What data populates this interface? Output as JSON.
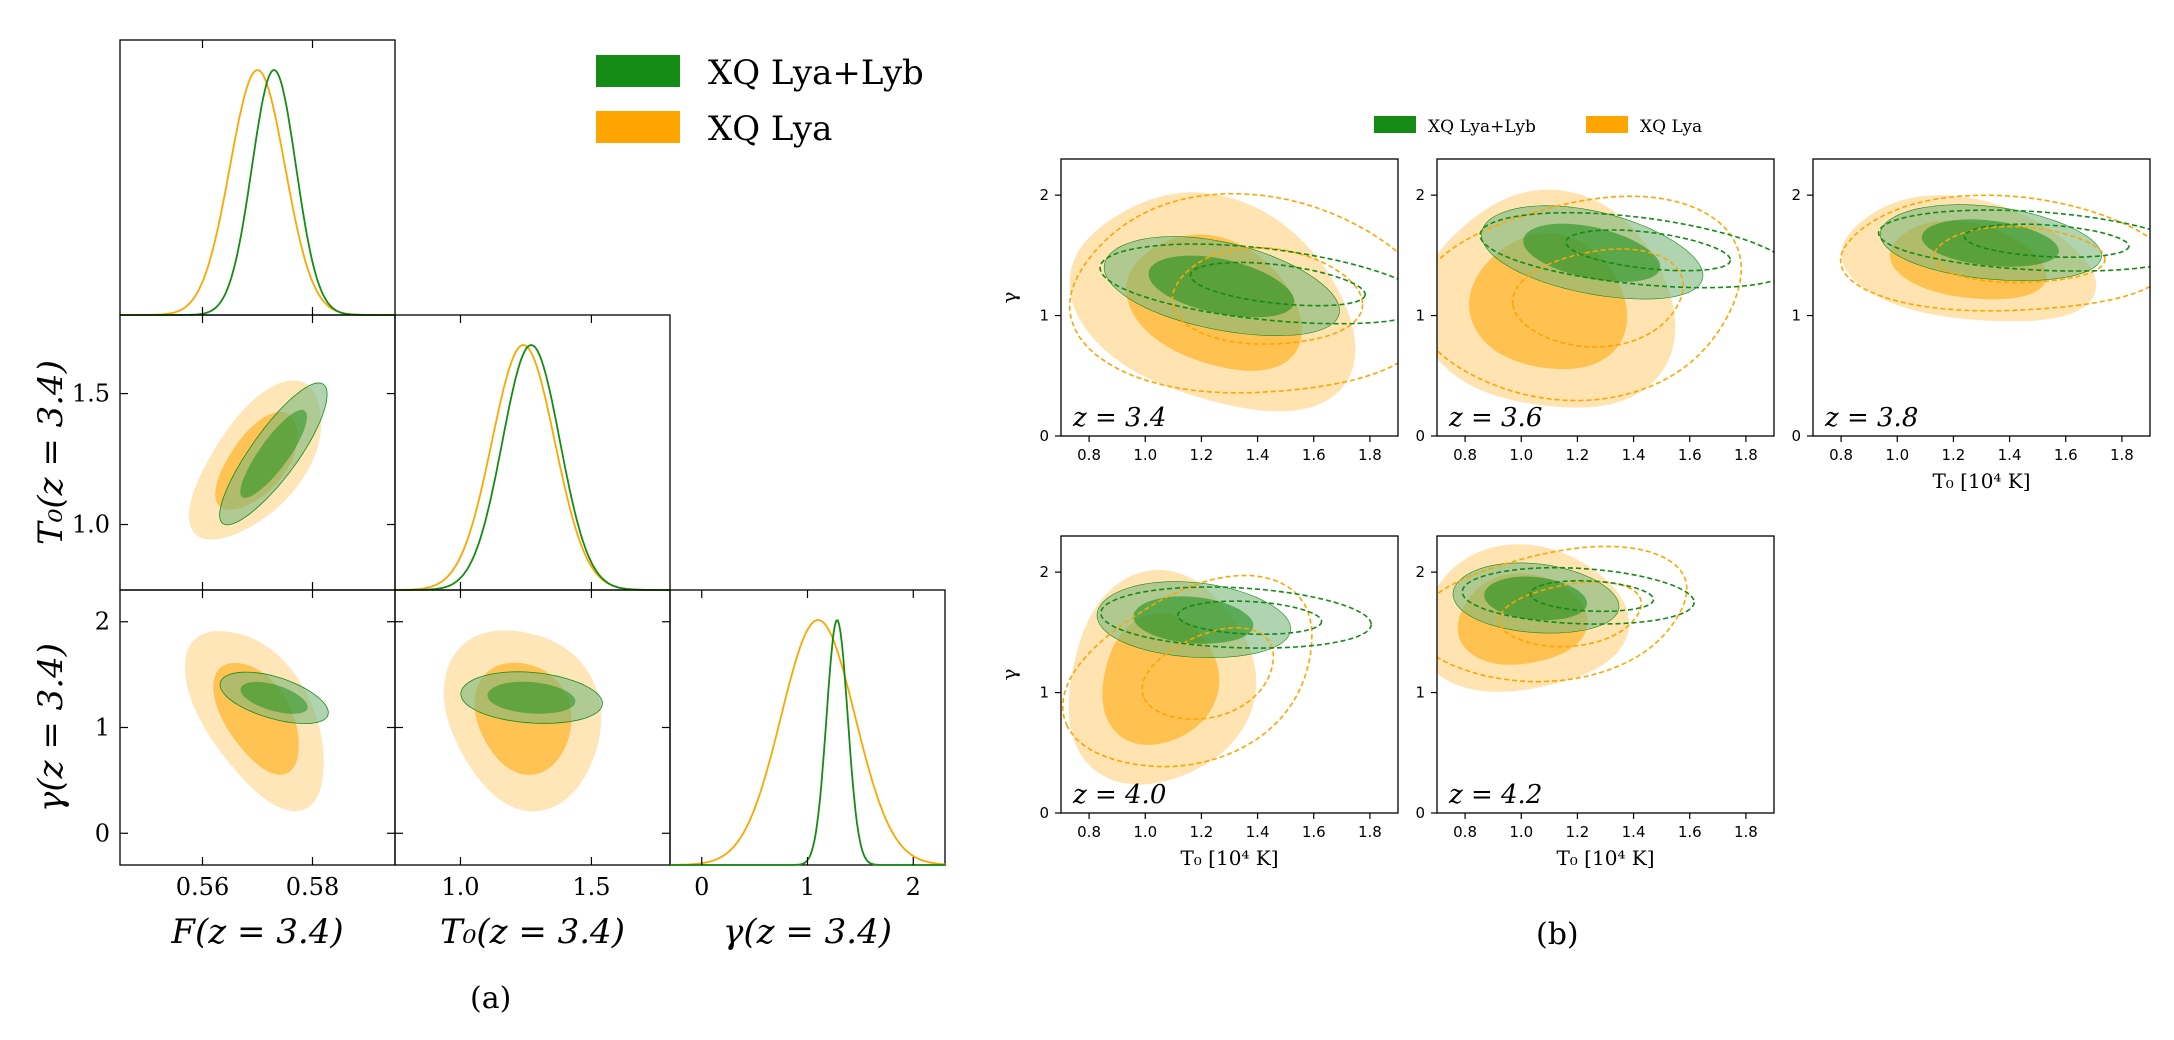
{
  "colors": {
    "green": "#148b14",
    "orange": "#ffa500",
    "green_fill": "#7cb87c",
    "orange_fill": "#ffd27f",
    "overlap": "#9a9a00"
  },
  "chart_data": [
    {
      "type": "corner",
      "panel_label": "(a)",
      "legend": [
        "XQ Lya+Lyb",
        "XQ Lya"
      ],
      "parameters": [
        {
          "name": "F",
          "label": "F(z = 3.4)",
          "range": [
            0.545,
            0.595
          ],
          "ticks": [
            0.56,
            0.58
          ],
          "tick_labels": [
            "0.56",
            "0.58"
          ]
        },
        {
          "name": "T0",
          "label": "T₀(z = 3.4)",
          "range": [
            0.75,
            1.8
          ],
          "ticks": [
            1.0,
            1.5
          ],
          "tick_labels": [
            "1.0",
            "1.5"
          ]
        },
        {
          "name": "gamma",
          "label": "γ(z = 3.4)",
          "range": [
            -0.3,
            2.3
          ],
          "ticks": [
            0,
            1,
            2
          ],
          "tick_labels": [
            "0",
            "1",
            "2"
          ]
        }
      ],
      "series": [
        {
          "name": "XQ Lya+Lyb",
          "means": [
            0.573,
            1.27,
            1.28
          ],
          "sigmas": [
            0.004,
            0.11,
            0.1
          ],
          "corr": {
            "F_T0": 0.85,
            "F_gamma": -0.55,
            "T0_gamma": -0.2
          }
        },
        {
          "name": "XQ Lya",
          "means": [
            0.57,
            1.24,
            1.1
          ],
          "sigmas": [
            0.005,
            0.12,
            0.35
          ],
          "corr": {
            "F_T0": 0.6,
            "F_gamma": -0.5,
            "T0_gamma": -0.1
          }
        }
      ]
    },
    {
      "type": "contour-grid",
      "panel_label": "(b)",
      "legend": [
        "XQ Lya+Lyb",
        "XQ Lya"
      ],
      "xlabel": "T₀ [10⁴ K]",
      "ylabel": "γ",
      "xlim": [
        0.7,
        1.9
      ],
      "ylim": [
        0,
        2.3
      ],
      "xticks": [
        "0.8",
        "1.0",
        "1.2",
        "1.4",
        "1.6",
        "1.8"
      ],
      "yticks": [
        "0",
        "1",
        "2"
      ],
      "panels": [
        {
          "z_label": "z = 3.4",
          "lyb": {
            "T0": 1.27,
            "gamma": 1.24,
            "sT0": 0.17,
            "sg": 0.17,
            "rho": -0.45
          },
          "lya": {
            "T0": 1.25,
            "gamma": 1.1,
            "sT0": 0.2,
            "sg": 0.38,
            "rho": -0.3
          }
        },
        {
          "z_label": "z = 3.6",
          "lyb": {
            "T0": 1.25,
            "gamma": 1.52,
            "sT0": 0.16,
            "sg": 0.16,
            "rho": -0.45
          },
          "lya": {
            "T0": 1.1,
            "gamma": 1.1,
            "sT0": 0.18,
            "sg": 0.38,
            "rho": -0.1
          }
        },
        {
          "z_label": "z = 3.8",
          "lyb": {
            "T0": 1.33,
            "gamma": 1.6,
            "sT0": 0.16,
            "sg": 0.13,
            "rho": -0.3
          },
          "lya": {
            "T0": 1.25,
            "gamma": 1.45,
            "sT0": 0.18,
            "sg": 0.22,
            "rho": -0.3
          }
        },
        {
          "z_label": "z = 4.0",
          "lyb": {
            "T0": 1.17,
            "gamma": 1.6,
            "sT0": 0.14,
            "sg": 0.13,
            "rho": -0.2
          },
          "lya": {
            "T0": 1.05,
            "gamma": 1.1,
            "sT0": 0.14,
            "sg": 0.35,
            "rho": 0.1
          }
        },
        {
          "z_label": "z = 4.2",
          "lyb": {
            "T0": 1.05,
            "gamma": 1.78,
            "sT0": 0.12,
            "sg": 0.12,
            "rho": -0.2
          },
          "lya": {
            "T0": 1.0,
            "gamma": 1.6,
            "sT0": 0.15,
            "sg": 0.25,
            "rho": 0.0
          }
        }
      ]
    }
  ]
}
